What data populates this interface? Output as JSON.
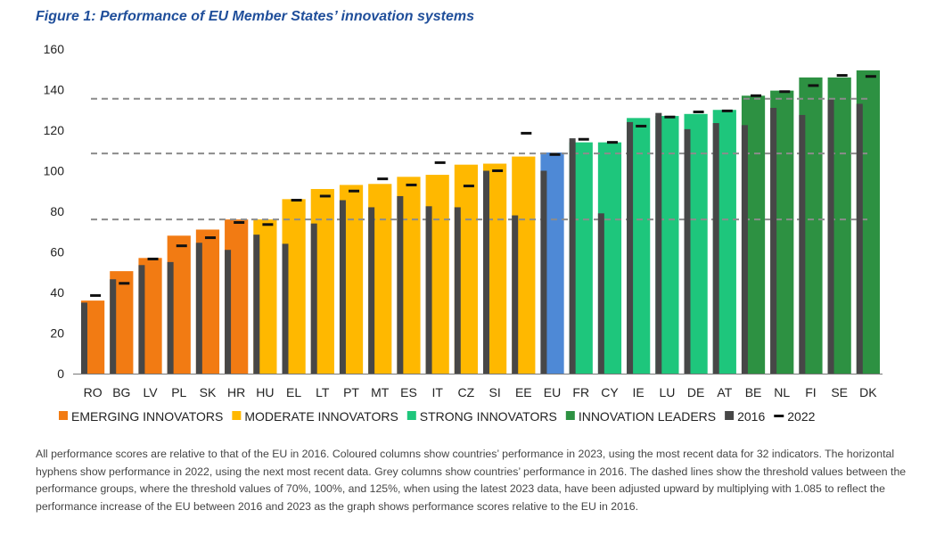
{
  "figure_title": "Figure 1: Performance of EU Member States’ innovation systems",
  "note": "All performance scores are relative to that of the EU in 2016. Coloured columns show countries’ performance in 2023, using the most recent data for 32 indicators. The horizontal hyphens show performance in 2022, using the next most recent data. Grey columns show countries’ performance in 2016. The dashed lines show the threshold values between the performance groups, where the threshold values of 70%, 100%, and 125%, when using the latest 2023 data, have been adjusted upward by multiplying with 1.085 to reflect the performance increase of the EU between 2016 and 2023 as the graph shows performance scores relative to the EU in 2016.",
  "colors": {
    "emerging": "#f27b13",
    "moderate": "#ffb800",
    "strong": "#1ec67c",
    "leaders": "#2d9142",
    "eu": "#4e89d6",
    "grey_2016": "#474747",
    "marker_2022": "#111111",
    "threshold": "#8c8c8c"
  },
  "chart_data": {
    "type": "bar",
    "title": "",
    "xlabel": "",
    "ylabel": "",
    "ylim": [
      0,
      160
    ],
    "yticks": [
      0,
      20,
      40,
      60,
      80,
      100,
      120,
      140,
      160
    ],
    "grid": false,
    "legend_position": "bottom",
    "categories": [
      "RO",
      "BG",
      "LV",
      "PL",
      "SK",
      "HR",
      "HU",
      "EL",
      "LT",
      "PT",
      "MT",
      "ES",
      "IT",
      "CZ",
      "SI",
      "EE",
      "EU",
      "FR",
      "CY",
      "IE",
      "LU",
      "DE",
      "AT",
      "BE",
      "NL",
      "FI",
      "SE",
      "DK"
    ],
    "groups": [
      "emerging",
      "emerging",
      "emerging",
      "emerging",
      "emerging",
      "emerging",
      "moderate",
      "moderate",
      "moderate",
      "moderate",
      "moderate",
      "moderate",
      "moderate",
      "moderate",
      "moderate",
      "moderate",
      "eu",
      "strong",
      "strong",
      "strong",
      "strong",
      "strong",
      "strong",
      "leaders",
      "leaders",
      "leaders",
      "leaders",
      "leaders"
    ],
    "series": [
      {
        "name": "2023",
        "values": [
          36,
          50.5,
          57,
          68,
          71,
          76,
          76,
          86,
          91,
          93,
          93.5,
          97,
          98,
          103,
          103.5,
          107,
          109,
          114,
          114,
          126,
          127,
          128,
          130,
          137,
          139.5,
          146,
          146,
          149.5
        ]
      },
      {
        "name": "2016",
        "values": [
          35,
          46.5,
          53.5,
          55,
          64.5,
          61,
          68.5,
          64,
          74,
          85.5,
          82,
          87.5,
          82.5,
          82,
          100,
          78,
          100,
          116,
          79,
          124,
          128.5,
          120.5,
          123.5,
          122.5,
          131,
          127.5,
          135,
          133
        ]
      },
      {
        "name": "2022",
        "values": [
          38.5,
          44.5,
          56.5,
          63,
          67,
          74.5,
          73.5,
          85.5,
          87.5,
          90,
          96,
          93,
          104,
          92.5,
          100,
          118.5,
          108,
          115.5,
          114,
          122,
          126.5,
          129,
          129.5,
          137,
          139,
          142,
          147,
          146.5
        ]
      }
    ],
    "thresholds": [
      76,
      108.5,
      135.5
    ],
    "legend": [
      {
        "key": "emerging",
        "label": "EMERGING INNOVATORS",
        "marker": "square"
      },
      {
        "key": "moderate",
        "label": "MODERATE INNOVATORS",
        "marker": "square"
      },
      {
        "key": "strong",
        "label": "STRONG INNOVATORS",
        "marker": "square"
      },
      {
        "key": "leaders",
        "label": "INNOVATION LEADERS",
        "marker": "square"
      },
      {
        "key": "grey_2016",
        "label": "2016",
        "marker": "square"
      },
      {
        "key": "marker_2022",
        "label": "2022",
        "marker": "dash"
      }
    ]
  }
}
